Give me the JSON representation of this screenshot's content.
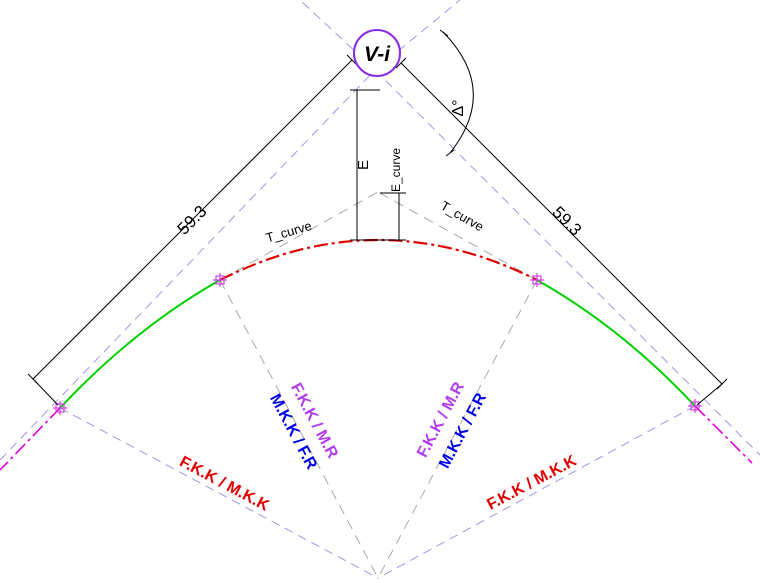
{
  "vertex_label": "V-i",
  "angle_symbol": "Δ°",
  "tangent_left_length": "59.3",
  "tangent_right_length": "59.3",
  "external_distance_label": "E",
  "curve_external_label": "E_curve",
  "curve_tangent_left_label": "T_curve",
  "curve_tangent_right_label": "T_curve",
  "radial_left_upper": "F.K.K / M.R",
  "radial_left_lower": "M.K.K / F.R",
  "radial_right_upper": "F.K.K / M.R",
  "radial_right_lower": "M.K.K / F.R",
  "chord_left_label": "F.K.K / M.K.K",
  "chord_right_label": "F.K.K / M.K.K",
  "colors": {
    "construction": "#9a9ae6",
    "radial": "#a8a8a8",
    "dimension": "#000000",
    "circular_curve": "#e00000",
    "spiral_curve": "#00d000",
    "alignment": "#e000e0",
    "vertex_circle": "#8a2be2",
    "label_purple": "#b23cf0",
    "label_blue": "#0000e6",
    "label_red": "#e00000"
  }
}
